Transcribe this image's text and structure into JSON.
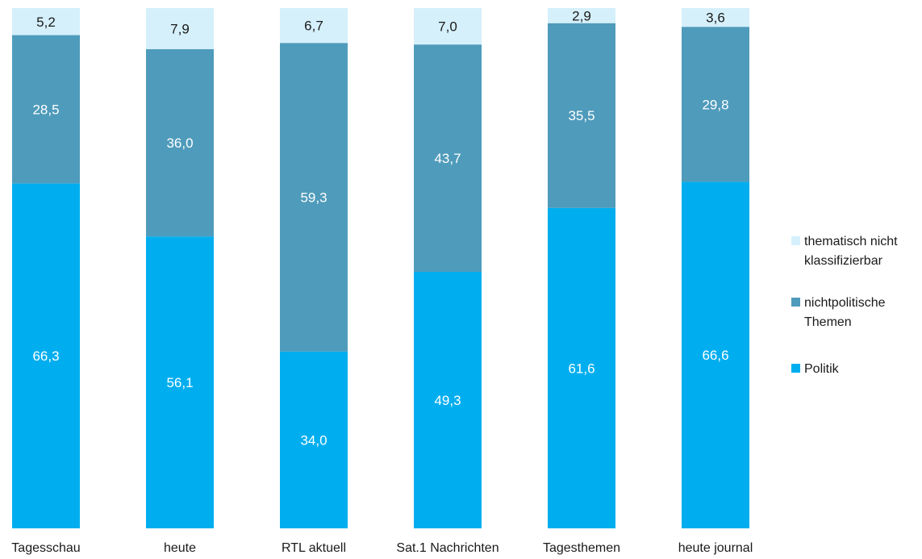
{
  "chart_data": {
    "type": "bar",
    "stacked": true,
    "categories": [
      "Tagesschau",
      "heute",
      "RTL aktuell",
      "Sat.1 Nachrichten",
      "Tagesthemen",
      "heute journal"
    ],
    "series": [
      {
        "name": "Politik",
        "color": "#00aeef",
        "label_color": "#ffffff",
        "values": [
          66.3,
          56.1,
          34.0,
          49.3,
          61.6,
          66.6
        ],
        "labels": [
          "66,3",
          "56,1",
          "34,0",
          "49,3",
          "61,6",
          "66,6"
        ]
      },
      {
        "name": "nichtpolitische Themen",
        "color": "#4f9bbb",
        "label_color": "#ffffff",
        "values": [
          28.5,
          36.0,
          59.3,
          43.7,
          35.5,
          29.8
        ],
        "labels": [
          "28,5",
          "36,0",
          "59,3",
          "43,7",
          "35,5",
          "29,8"
        ]
      },
      {
        "name": "thematisch nicht klassifizierbar",
        "color": "#d5f0fb",
        "label_color": "#1a1a1a",
        "values": [
          5.2,
          7.9,
          6.7,
          7.0,
          2.9,
          3.6
        ],
        "labels": [
          "5,2",
          "7,9",
          "6,7",
          "7,0",
          "2,9",
          "3,6"
        ]
      }
    ],
    "legend": {
      "placement": "right",
      "entries": [
        {
          "series": 2,
          "lines": [
            "thematisch nicht",
            "klassifizierbar"
          ]
        },
        {
          "series": 1,
          "lines": [
            "nichtpolitische",
            "Themen"
          ]
        },
        {
          "series": 0,
          "lines": [
            "Politik"
          ]
        }
      ]
    },
    "ylim": [
      0,
      100
    ]
  }
}
